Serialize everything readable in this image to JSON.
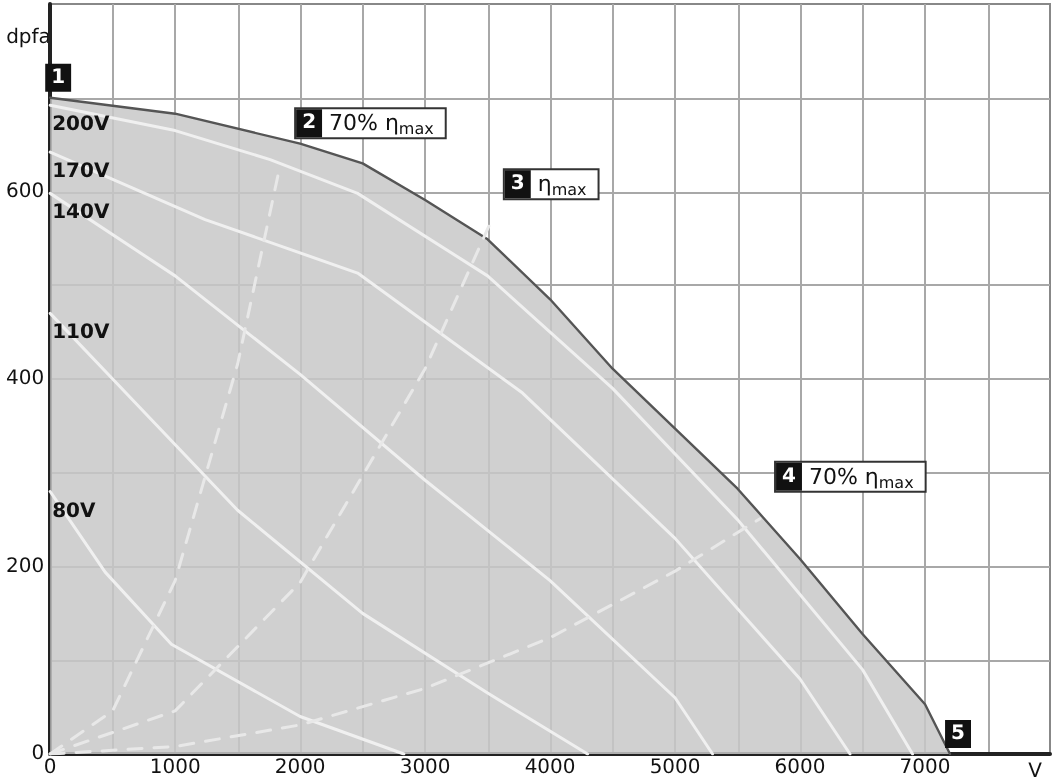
{
  "chart_data": {
    "type": "line",
    "xlabel": "V",
    "ylabel": "dpfa",
    "xlim": [
      0,
      8000
    ],
    "ylim": [
      0,
      800
    ],
    "xticks": [
      0,
      {
        "value": 500,
        "label": null
      },
      1000,
      {
        "value": 1500,
        "label": null
      },
      2000,
      {
        "value": 2500,
        "label": null
      },
      3000,
      {
        "value": 3500,
        "label": null
      },
      4000,
      {
        "value": 4500,
        "label": null
      },
      5000,
      {
        "value": 5500,
        "label": null
      },
      6000,
      {
        "value": 6500,
        "label": null
      },
      7000,
      {
        "value": 7500,
        "label": null
      }
    ],
    "yticks": [
      0,
      {
        "value": 100,
        "label": null
      },
      200,
      {
        "value": 300,
        "label": null
      },
      400,
      {
        "value": 500,
        "label": null
      },
      600,
      {
        "value": 700,
        "label": null
      }
    ],
    "grid": true,
    "legend": false,
    "marker": "none",
    "series": [
      {
        "type": "area",
        "color": "#c8c8c8",
        "x": [
          0,
          1000,
          2000,
          2500,
          3000,
          3500,
          4000,
          4500,
          5000,
          5500,
          6000,
          6500,
          7000,
          7200
        ],
        "values": [
          700,
          683,
          651,
          630,
          591,
          549,
          485,
          411,
          347,
          283,
          208,
          128,
          53,
          0
        ]
      },
      {
        "name": "200V",
        "color": "#f0f0f0",
        "x": [
          0,
          1000,
          1760,
          2460,
          3500,
          4500,
          5500,
          6500,
          6900
        ],
        "values": [
          692,
          665,
          634,
          598,
          510,
          390,
          250,
          90,
          0
        ]
      },
      {
        "name": "170V",
        "color": "#f0f0f0",
        "x": [
          0,
          1240,
          2460,
          3780,
          5000,
          6000,
          6400
        ],
        "values": [
          642,
          570,
          513,
          385,
          230,
          80,
          0
        ]
      },
      {
        "name": "140V",
        "color": "#f0f0f0",
        "x": [
          0,
          1000,
          2000,
          3000,
          4000,
          5000,
          5300
        ],
        "values": [
          598,
          510,
          405,
          292,
          185,
          60,
          0
        ]
      },
      {
        "name": "110V",
        "color": "#f0f0f0",
        "x": [
          0,
          500,
          1500,
          2500,
          3500,
          4300
        ],
        "values": [
          470,
          400,
          260,
          150,
          65,
          0
        ]
      },
      {
        "name": "80V",
        "color": "#f0f0f0",
        "x": [
          0,
          440,
          970,
          2000,
          2830
        ],
        "values": [
          280,
          194,
          117,
          40,
          0
        ]
      },
      {
        "color": "#e8e8e8",
        "line_style": "dashed",
        "x": [
          0,
          500,
          1000,
          1500,
          1840
        ],
        "values": [
          0,
          46,
          185,
          416,
          628
        ]
      },
      {
        "color": "#e8e8e8",
        "line_style": "dashed",
        "x": [
          0,
          1000,
          2000,
          3000,
          3510
        ],
        "values": [
          0,
          46,
          183,
          411,
          563
        ]
      },
      {
        "color": "#e8e8e8",
        "line_style": "dashed",
        "x": [
          0,
          1000,
          2000,
          3000,
          4000,
          5000,
          5680
        ],
        "values": [
          0,
          8,
          31,
          70,
          124,
          195,
          251
        ]
      }
    ],
    "annotations": [
      {
        "text": "1",
        "x": 0,
        "y": 700
      },
      {
        "text": "2 70% η$_{max}$",
        "x": 1840,
        "y": 628
      },
      {
        "text": "3 η$_{max}$",
        "x": 3510,
        "y": 563
      },
      {
        "text": "4 70% η$_{max}$",
        "x": 5680,
        "y": 251
      },
      {
        "text": "5",
        "x": 7200,
        "y": 0
      }
    ]
  }
}
